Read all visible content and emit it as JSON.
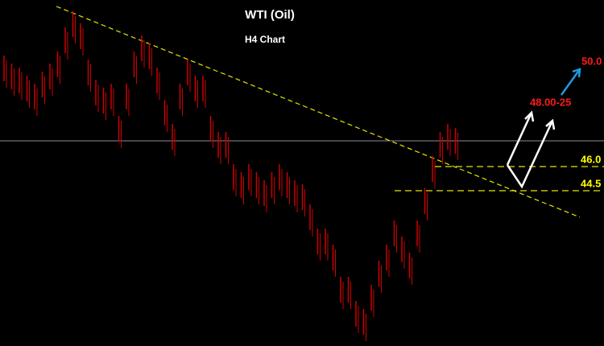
{
  "chart_data": {
    "type": "range-bar",
    "title": "WTI (Oil)",
    "subtitle": "H4 Chart",
    "color": "#cc0000",
    "ylim": [
      34.85,
      56.35
    ],
    "high": [
      52.9,
      52.4,
      52.15,
      51.65,
      51.15,
      51.9,
      52.4,
      53.15,
      54.65,
      55.65,
      54.9,
      52.65,
      51.4,
      50.9,
      51.15,
      49.15,
      51.15,
      53.15,
      54.15,
      53.65,
      52.15,
      50.15,
      48.65,
      51.15,
      52.65,
      51.65,
      51.65,
      49.15,
      48.15,
      48.15,
      46.15,
      45.65,
      46.15,
      45.65,
      45.15,
      45.65,
      46.15,
      45.65,
      45.15,
      44.9,
      43.65,
      42.15,
      42.15,
      41.15,
      39.15,
      39.15,
      37.65,
      37.15,
      38.65,
      40.15,
      41.15,
      42.65,
      41.65,
      40.65,
      42.65,
      44.65,
      46.65,
      48.15,
      48.65,
      48.4
    ],
    "low": [
      51.3,
      50.8,
      50.55,
      50.05,
      49.55,
      50.3,
      50.8,
      51.55,
      53.05,
      54.05,
      53.3,
      51.05,
      49.8,
      49.3,
      49.55,
      47.55,
      49.55,
      51.55,
      52.55,
      52.05,
      50.55,
      48.55,
      47.05,
      49.55,
      51.05,
      50.05,
      50.05,
      47.55,
      46.55,
      46.55,
      44.55,
      44.05,
      44.55,
      44.05,
      43.55,
      44.05,
      44.55,
      44.05,
      43.55,
      43.3,
      42.05,
      40.55,
      40.55,
      39.55,
      37.55,
      37.55,
      36.05,
      35.55,
      37.05,
      38.55,
      39.55,
      41.05,
      40.05,
      39.05,
      41.05,
      43.05,
      45.05,
      46.55,
      47.05,
      46.8
    ],
    "current_price": 47.6,
    "trendline": [
      55.95,
      42.85
    ],
    "levels": [
      {
        "value": 46.0,
        "label": "46.0"
      },
      {
        "value": 44.5,
        "label": "44.5"
      }
    ],
    "targets": [
      {
        "value": 48.0,
        "label": "48.00-25"
      },
      {
        "value": 50.0,
        "label": "50.0"
      }
    ]
  }
}
